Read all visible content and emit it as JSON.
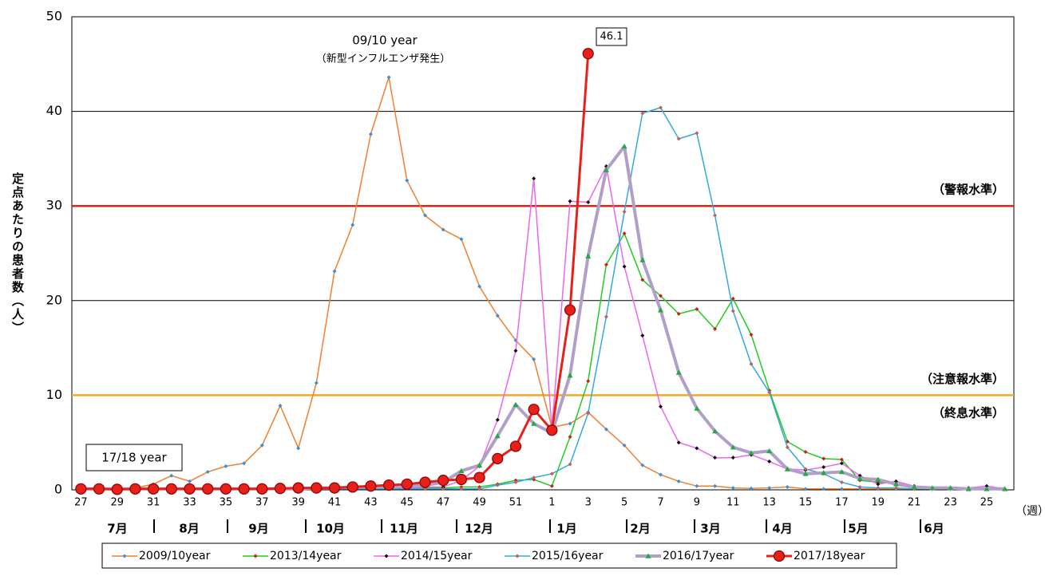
{
  "chart_data": {
    "type": "line",
    "y_label": "定点あたりの患者数（人）",
    "x_unit": "（週）",
    "categories": [
      "27",
      null,
      "29",
      null,
      "31",
      null,
      "33",
      null,
      "35",
      null,
      "37",
      null,
      "39",
      null,
      "41",
      null,
      "43",
      null,
      "45",
      null,
      "47",
      null,
      "49",
      null,
      "51",
      null,
      "1",
      null,
      "3",
      null,
      "5",
      null,
      "7",
      null,
      "9",
      null,
      "11",
      null,
      "13",
      null,
      "15",
      null,
      "17",
      null,
      "19",
      null,
      "21",
      null,
      "23",
      null,
      "25",
      null
    ],
    "month_labels": [
      "7月",
      "8月",
      "9月",
      "10月",
      "11月",
      "12月",
      "1月",
      "2月",
      "3月",
      "4月",
      "5月",
      "6月"
    ],
    "ylim": [
      0,
      50
    ],
    "yticks": [
      0,
      10,
      20,
      30,
      40,
      50
    ],
    "grid": true,
    "reference_lines": [
      {
        "value": 30,
        "color": "#e8201a",
        "label": "（警報水準）"
      },
      {
        "value": 10,
        "color": "#f5a623",
        "label": "（注意報水準）"
      }
    ],
    "annotations": [
      "09/10 year",
      "（新型インフルエンザ発生）",
      "17/18 year",
      "（終息水準）"
    ],
    "legend": "bottom",
    "series": [
      {
        "name": "2009/10year",
        "color": "#f08030",
        "marker": "diamond",
        "marker_color": "#3a8fd8",
        "values": [
          0.05,
          0.1,
          0.1,
          0.2,
          0.6,
          1.5,
          0.9,
          1.9,
          2.5,
          2.8,
          4.7,
          8.9,
          4.4,
          11.3,
          23.1,
          28.0,
          37.6,
          43.6,
          32.7,
          29.0,
          27.5,
          26.5,
          21.5,
          18.4,
          15.8,
          13.8,
          6.6,
          7.0,
          8.2,
          6.4,
          4.7,
          2.6,
          1.6,
          0.9,
          0.4,
          0.4,
          0.2,
          0.15,
          0.2,
          0.3,
          0.1,
          0.1,
          0.1,
          0.1,
          0.1,
          0.1,
          0.1,
          0.1,
          0.1,
          0.1,
          0.1,
          0.1
        ]
      },
      {
        "name": "2013/14year",
        "color": "#22cc22",
        "marker": "diamond",
        "marker_color": "#cc2020",
        "values": [
          0.1,
          0.1,
          0.1,
          0.1,
          0.1,
          0.1,
          0.1,
          0.1,
          0.1,
          0.1,
          0.1,
          0.1,
          0.1,
          0.2,
          0.2,
          0.2,
          0.2,
          0.2,
          0.2,
          0.2,
          0.2,
          0.3,
          0.3,
          0.6,
          1.0,
          1.1,
          0.4,
          5.6,
          11.5,
          23.8,
          27.1,
          22.2,
          20.5,
          18.6,
          19.1,
          17.0,
          20.2,
          16.4,
          10.5,
          5.1,
          4.0,
          3.3,
          3.2,
          1.0,
          0.8,
          0.7,
          0.4,
          0.2,
          0.2,
          0.1,
          0.1,
          0.1
        ]
      },
      {
        "name": "2014/15year",
        "color": "#ee66ee",
        "marker": "diamond",
        "marker_color": "#111111",
        "values": [
          0.1,
          0.1,
          0.1,
          0.1,
          0.1,
          0.1,
          0.1,
          0.1,
          0.1,
          0.1,
          0.1,
          0.1,
          0.1,
          0.2,
          0.2,
          0.2,
          0.2,
          0.2,
          0.2,
          0.3,
          0.3,
          1.0,
          2.5,
          7.4,
          14.7,
          32.9,
          6.4,
          30.5,
          30.4,
          34.2,
          23.6,
          16.3,
          8.8,
          5.0,
          4.4,
          3.4,
          3.4,
          3.7,
          3.0,
          2.2,
          2.1,
          2.4,
          2.8,
          1.5,
          0.6,
          0.9,
          0.4,
          0.2,
          0.2,
          0.2,
          0.4,
          0.1
        ]
      },
      {
        "name": "2015/16year",
        "color": "#33aadd",
        "marker": "diamond",
        "marker_color": "#c06060",
        "values": [
          0.1,
          0.1,
          0.1,
          0.1,
          0.1,
          0.1,
          0.1,
          0.1,
          0.1,
          0.1,
          0.1,
          0.1,
          0.1,
          0.1,
          0.1,
          0.1,
          0.1,
          0.1,
          0.1,
          0.1,
          0.1,
          0.1,
          0.1,
          0.5,
          0.8,
          1.3,
          1.7,
          2.7,
          8.1,
          18.3,
          29.4,
          39.8,
          40.4,
          37.1,
          37.7,
          29.0,
          18.9,
          13.3,
          10.3,
          4.5,
          2.2,
          1.7,
          0.8,
          0.3,
          0.2,
          0.2,
          0.1,
          0.1,
          0.1,
          0.1,
          0.1,
          0.1
        ]
      },
      {
        "name": "2016/17year",
        "color": "#b0a0c8",
        "marker": "triangle",
        "marker_color": "#22aa44",
        "values": [
          0.1,
          0.1,
          0.1,
          0.1,
          0.1,
          0.1,
          0.1,
          0.1,
          0.1,
          0.1,
          0.1,
          0.1,
          0.1,
          0.2,
          0.2,
          0.3,
          0.3,
          0.3,
          0.4,
          0.5,
          0.8,
          2.0,
          2.6,
          5.7,
          9.0,
          7.0,
          6.0,
          12.1,
          24.7,
          33.8,
          36.3,
          24.3,
          19.0,
          12.4,
          8.6,
          6.2,
          4.5,
          3.9,
          4.1,
          2.2,
          1.7,
          1.8,
          1.9,
          1.2,
          1.1,
          0.6,
          0.3,
          0.2,
          0.2,
          0.1,
          0.1,
          0.1
        ]
      },
      {
        "name": "2017/18year",
        "color": "#e8201a",
        "marker": "circle",
        "marker_color": "#e8201a",
        "values": [
          0.1,
          0.1,
          0.05,
          0.1,
          0.1,
          0.1,
          0.1,
          0.1,
          0.1,
          0.1,
          0.1,
          0.15,
          0.2,
          0.2,
          0.2,
          0.3,
          0.4,
          0.5,
          0.6,
          0.8,
          1.0,
          1.1,
          1.3,
          3.3,
          4.6,
          8.5,
          6.3,
          19.0,
          46.1,
          null,
          null,
          null,
          null,
          null,
          null,
          null,
          null,
          null,
          null,
          null,
          null,
          null,
          null,
          null,
          null,
          null,
          null,
          null,
          null,
          null,
          null,
          null
        ]
      }
    ]
  }
}
